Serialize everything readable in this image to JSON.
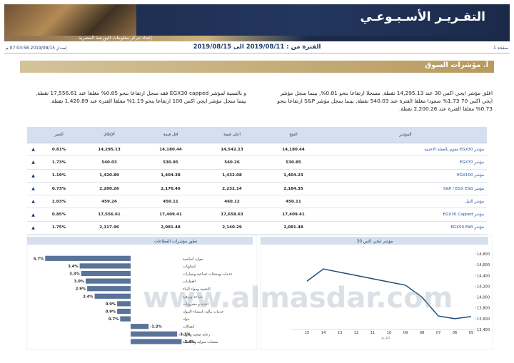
{
  "header": {
    "title": "التقـريـر الأسـبـوعـي",
    "subtitle": "إعداد مركز معلومات البورصة المصرية"
  },
  "meta": {
    "issued": "إصدار 2019/08/15 07:03:58 م",
    "period": "الفترة من : 2019/08/11 الى 2019/08/15",
    "page": "صفحة 1"
  },
  "section": {
    "number": "أ.",
    "title": "مؤشرات السوق"
  },
  "paragraphs": [
    "اغلق مؤشر ايجي اكس 30 عند 14,295.13 نقطة, مسجلا ارتفاعا بنحو 0.81%, بينما سجل مؤشر ايجي اكس 70 1.73% صعودا مغلقا الفترة عند 540.03 نقطة, بينما سجل مؤشر S&P ارتفاعا بنحو 0.73% مغلقا الفترة عند 2,200.26 نقطة.",
    "و بالنسبة لمؤشر EGX30 capped فقد سجل ارتفاعا بنحو 0.85% مغلقا عند 17,556.61 نقطة, بينما سجل مؤشر ايجي اكس 100 ارتفاعا بنحو 1.19% مغلقا الفترة عند 1,420.89 نقطة."
  ],
  "table": {
    "columns": [
      "المؤشر",
      "الفتح",
      "اعلى قيمة",
      "اقل قيمة",
      "الإغلاق",
      "التغير"
    ],
    "rows": [
      [
        "مؤشر EGX30 مقوم بالعملة الاجنبية",
        "14,180.44",
        "14,542.13",
        "14,180.44",
        "14,295.13",
        "0.81%",
        "▲"
      ],
      [
        "مؤشر EGX70",
        "530.85",
        "540.26",
        "530.95",
        "540.03",
        "1.73%",
        "▲"
      ],
      [
        "مؤشر EGX100",
        "1,404.23",
        "1,432.08",
        "1,404.38",
        "1,420.89",
        "1.19%",
        "▲"
      ],
      [
        "مؤشر S&P / EGX ESG",
        "2,184.35",
        "2,232.14",
        "2,176.46",
        "2,200.26",
        "0.73%",
        "▲"
      ],
      [
        "مؤشر النيل",
        "450.11",
        "460.12",
        "450.11",
        "459.24",
        "2.03%",
        "▲"
      ],
      [
        "مؤشر EGX30 Capped",
        "17,409.41",
        "17,658.63",
        "17,409.41",
        "17,556.61",
        "0.85%",
        "▲"
      ],
      [
        "مؤشر EGX50 EWI",
        "2,081.48",
        "2,140.29",
        "2,081.48",
        "2,117.96",
        "1.75%",
        "▲"
      ]
    ]
  },
  "watermark": "www.almasdar.com",
  "chart_data": [
    {
      "type": "bar",
      "orientation": "horizontal",
      "title": "تطور مؤشرات القطاعات",
      "categories": [
        "موارد أساسية",
        "كيماويات",
        "خدمات ومنتجات صناعية وسيارات",
        "العقارات",
        "التشييد ومواد البناء",
        "سياحة وترفيه",
        "اغذية و مشروبات",
        "خدمات مالية باستثناء البنوك",
        "بنوك",
        "اتصالات",
        "رعاية صحية وادوية",
        "منتجات منزلية وشخصية"
      ],
      "values": [
        5.7,
        3.4,
        3.3,
        3.0,
        2.9,
        2.4,
        0.9,
        0.9,
        0.7,
        -1.2,
        -3.1,
        -3.4
      ],
      "value_labels": [
        "5.7%",
        "3.4%",
        "3.3%",
        "3.0%",
        "2.9%",
        "2.4%",
        "0.9%",
        "0.9%",
        "0.7%",
        "-1.2%",
        "-3.1%",
        "-3.4%"
      ],
      "color": "#5a7399",
      "xlim": [
        -4,
        6
      ],
      "x_reversed": true
    },
    {
      "type": "line",
      "title": "مؤشر ايجي اكس 30",
      "x_label": "التاريخ",
      "categories": [
        "15",
        "14",
        "13",
        "12",
        "11",
        "10",
        "09",
        "08",
        "07",
        "06",
        "05"
      ],
      "values": [
        14295,
        14520,
        14460,
        14400,
        14340,
        14280,
        14220,
        14000,
        13650,
        13600,
        13640
      ],
      "color": "#1f4e79",
      "ylim": [
        13400,
        14800
      ],
      "yticks": [
        {
          "value": 13400,
          "label": "13,400"
        },
        {
          "value": 13600,
          "label": "13,600"
        },
        {
          "value": 13800,
          "label": "13,800"
        },
        {
          "value": 14000,
          "label": "14,000"
        },
        {
          "value": 14200,
          "label": "14,200"
        },
        {
          "value": 14400,
          "label": "14,400"
        },
        {
          "value": 14600,
          "label": "14,600"
        },
        {
          "value": 14800,
          "label": "14,800"
        }
      ]
    }
  ]
}
